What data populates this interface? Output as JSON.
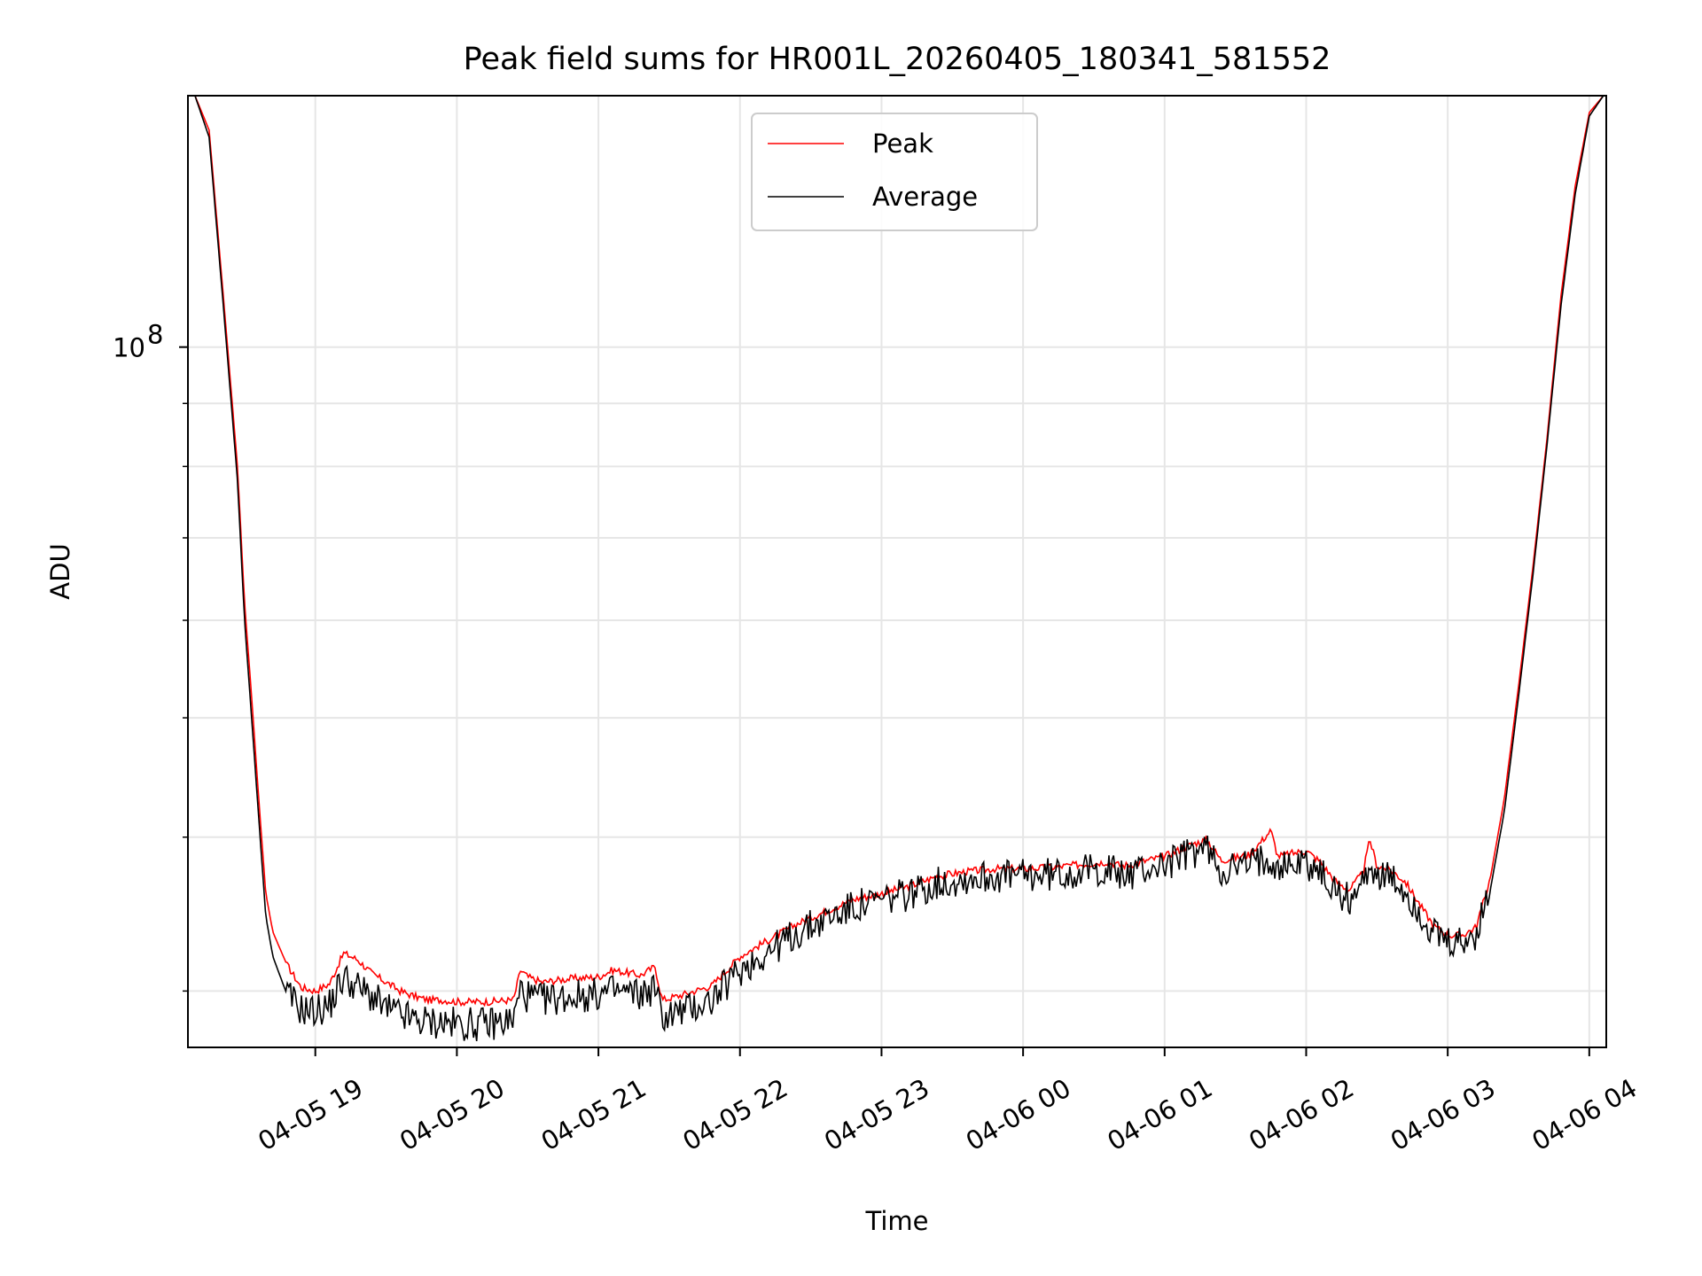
{
  "chart_data": {
    "type": "line",
    "title": "Peak field sums for HR001L_20260405_180341_581552",
    "xlabel": "Time",
    "ylabel": "ADU",
    "yscale": "log",
    "xlim": [
      18.1,
      28.12
    ],
    "ylim": [
      27000000,
      160000000
    ],
    "y_ticks": [
      {
        "value": 100000000,
        "base": "10",
        "exp": "8"
      }
    ],
    "y_minor_ticks": [
      30000000,
      40000000,
      50000000,
      60000000,
      70000000,
      80000000,
      90000000,
      200000000
    ],
    "x_ticks": [
      {
        "value": 19,
        "label": "04-05 19"
      },
      {
        "value": 20,
        "label": "04-05 20"
      },
      {
        "value": 21,
        "label": "04-05 21"
      },
      {
        "value": 22,
        "label": "04-05 22"
      },
      {
        "value": 23,
        "label": "04-05 23"
      },
      {
        "value": 24,
        "label": "04-06 00"
      },
      {
        "value": 25,
        "label": "04-06 01"
      },
      {
        "value": 26,
        "label": "04-06 02"
      },
      {
        "value": 27,
        "label": "04-06 03"
      },
      {
        "value": 28,
        "label": "04-06 04"
      }
    ],
    "grid": true,
    "legend_position": "top-center",
    "series": [
      {
        "name": "Peak",
        "color": "#ff0000",
        "x": [
          18.15,
          18.25,
          18.35,
          18.45,
          18.5,
          18.55,
          18.6,
          18.65,
          18.7,
          18.8,
          18.9,
          19.0,
          19.1,
          19.2,
          19.3,
          19.4,
          19.5,
          19.6,
          19.7,
          19.8,
          19.9,
          20.0,
          20.2,
          20.4,
          20.45,
          20.5,
          20.6,
          20.8,
          21.0,
          21.1,
          21.3,
          21.4,
          21.45,
          21.6,
          21.8,
          22.0,
          22.2,
          22.4,
          22.6,
          22.8,
          23.0,
          23.2,
          23.4,
          23.6,
          23.8,
          24.0,
          24.2,
          24.4,
          24.6,
          24.7,
          24.8,
          25.0,
          25.2,
          25.3,
          25.4,
          25.6,
          25.75,
          25.8,
          25.9,
          26.0,
          26.1,
          26.2,
          26.3,
          26.4,
          26.45,
          26.5,
          26.6,
          26.7,
          26.8,
          26.9,
          27.0,
          27.1,
          27.2,
          27.3,
          27.4,
          27.5,
          27.6,
          27.7,
          27.8,
          27.9,
          28.0,
          28.1
        ],
        "y": [
          160000000,
          150000000,
          110000000,
          80000000,
          62000000,
          52000000,
          43000000,
          36000000,
          33500000,
          31500000,
          30200000,
          30000000,
          30400000,
          32200000,
          31800000,
          31000000,
          30500000,
          30000000,
          29700000,
          29500000,
          29500000,
          29400000,
          29400000,
          29500000,
          31200000,
          30800000,
          30500000,
          30700000,
          30800000,
          31200000,
          30900000,
          31400000,
          29500000,
          29800000,
          30300000,
          32000000,
          33000000,
          34000000,
          34800000,
          35600000,
          36000000,
          36500000,
          37200000,
          37500000,
          37700000,
          37700000,
          37800000,
          38000000,
          38200000,
          37900000,
          38100000,
          38600000,
          39500000,
          39800000,
          38300000,
          38700000,
          40500000,
          38600000,
          38800000,
          39000000,
          38200000,
          36900000,
          36200000,
          37400000,
          39800000,
          37900000,
          37600000,
          36800000,
          35300000,
          33900000,
          33300000,
          33300000,
          33800000,
          37000000,
          43000000,
          53000000,
          66000000,
          84000000,
          110000000,
          135000000,
          155000000,
          160000000
        ]
      },
      {
        "name": "Average",
        "color": "#000000",
        "x": [
          18.15,
          18.25,
          18.35,
          18.45,
          18.5,
          18.55,
          18.6,
          18.65,
          18.7,
          18.8,
          18.9,
          19.0,
          19.1,
          19.2,
          19.3,
          19.4,
          19.5,
          19.6,
          19.7,
          19.8,
          19.9,
          20.0,
          20.2,
          20.4,
          20.45,
          20.5,
          20.6,
          20.8,
          21.0,
          21.1,
          21.3,
          21.4,
          21.45,
          21.6,
          21.8,
          22.0,
          22.2,
          22.4,
          22.6,
          22.8,
          23.0,
          23.2,
          23.4,
          23.6,
          23.8,
          24.0,
          24.2,
          24.4,
          24.6,
          24.7,
          24.8,
          25.0,
          25.2,
          25.3,
          25.4,
          25.6,
          25.75,
          25.8,
          25.9,
          26.0,
          26.1,
          26.2,
          26.3,
          26.4,
          26.45,
          26.5,
          26.6,
          26.7,
          26.8,
          26.9,
          27.0,
          27.1,
          27.2,
          27.3,
          27.4,
          27.5,
          27.6,
          27.7,
          27.8,
          27.9,
          28.0,
          28.1
        ],
        "y": [
          160000000,
          148000000,
          108000000,
          78000000,
          60000000,
          50000000,
          41500000,
          34500000,
          32000000,
          29800000,
          29000000,
          28900000,
          29200000,
          30800000,
          30200000,
          29700000,
          29000000,
          28700000,
          28400000,
          28300000,
          28300000,
          28200000,
          28200000,
          28400000,
          30100000,
          29700000,
          29500000,
          29700000,
          29800000,
          30000000,
          29800000,
          30200000,
          28600000,
          28900000,
          29500000,
          31200000,
          32300000,
          33400000,
          34300000,
          35100000,
          35500000,
          36000000,
          36700000,
          37000000,
          37200000,
          37200000,
          37300000,
          37500000,
          37700000,
          37200000,
          37500000,
          38000000,
          38900000,
          39200000,
          37600000,
          38000000,
          38600000,
          37900000,
          38000000,
          38200000,
          37400000,
          36200000,
          35600000,
          36600000,
          38200000,
          37200000,
          36900000,
          36100000,
          34700000,
          33300000,
          32700000,
          32700000,
          33300000,
          36200000,
          42000000,
          52000000,
          65000000,
          83000000,
          108000000,
          133000000,
          154000000,
          160000000
        ]
      }
    ]
  }
}
